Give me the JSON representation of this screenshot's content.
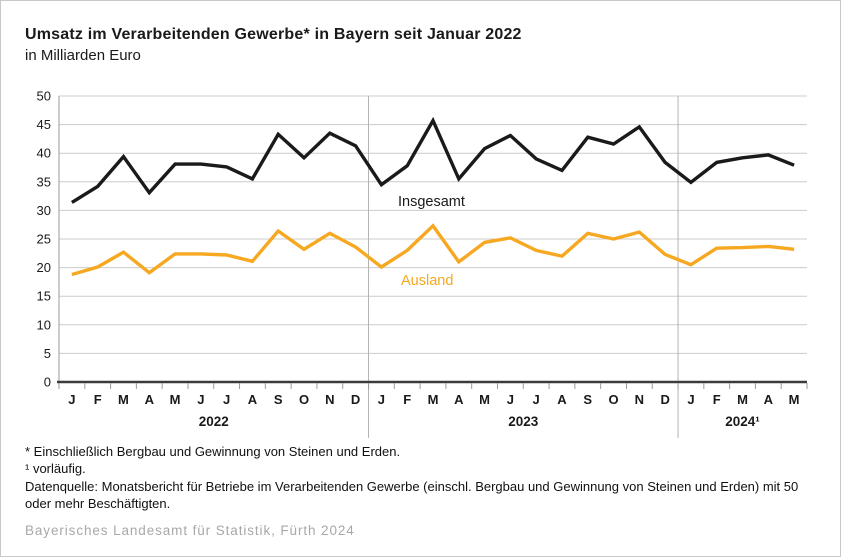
{
  "title": "Umsatz im Verarbeitenden Gewerbe* in Bayern seit Januar 2022",
  "subtitle": "in Milliarden Euro",
  "chart_data": {
    "type": "line",
    "x_months": [
      "J",
      "F",
      "M",
      "A",
      "M",
      "J",
      "J",
      "A",
      "S",
      "O",
      "N",
      "D",
      "J",
      "F",
      "M",
      "A",
      "M",
      "J",
      "J",
      "A",
      "S",
      "O",
      "N",
      "D",
      "J",
      "F",
      "M",
      "A",
      "M"
    ],
    "year_groups": [
      {
        "label": "2022",
        "months": 12
      },
      {
        "label": "2023",
        "months": 12
      },
      {
        "label": "2024¹",
        "months": 5
      }
    ],
    "series": [
      {
        "name": "Insgesamt",
        "color": "#1a1a1a",
        "values": [
          31.4,
          34.2,
          39.4,
          33.1,
          38.1,
          38.1,
          37.6,
          35.5,
          43.3,
          39.2,
          43.5,
          41.3,
          34.5,
          37.8,
          45.7,
          35.5,
          40.8,
          43.1,
          39.0,
          37.0,
          42.8,
          41.6,
          44.6,
          38.4,
          34.9,
          38.4,
          39.2,
          39.7,
          37.9
        ]
      },
      {
        "name": "Ausland",
        "color": "#f6a821",
        "values": [
          18.8,
          20.1,
          22.7,
          19.1,
          22.4,
          22.4,
          22.2,
          21.1,
          26.4,
          23.2,
          26.0,
          23.6,
          20.1,
          23.0,
          27.3,
          21.0,
          24.4,
          25.2,
          23.0,
          22.0,
          26.0,
          25.0,
          26.2,
          22.3,
          20.5,
          23.4,
          23.5,
          23.7,
          23.2
        ]
      }
    ],
    "ylim": [
      0,
      50
    ],
    "ytick_step": 5,
    "xlabel": "",
    "ylabel": "",
    "grid": "horizontal gridlines + vertical year dividers",
    "legend_position": "labels on chart"
  },
  "footnotes": {
    "line1": "* Einschließlich Bergbau und Gewinnung von Steinen und Erden.",
    "line2": "¹ vorläufig.",
    "line3": "Datenquelle: Monatsbericht für Betriebe im Verarbeitenden Gewerbe (einschl. Bergbau und Gewinnung von Steinen und Erden) mit 50 oder mehr Beschäftigten."
  },
  "footer": "Bayerisches Landesamt für Statistik, Fürth 2024",
  "colors": {
    "insgesamt_line": "#1a1a1a",
    "ausland_line": "#f6a821",
    "gridline": "#cccccc",
    "frame_border": "#c8c8c8",
    "footer_text": "#a8a8a8"
  }
}
